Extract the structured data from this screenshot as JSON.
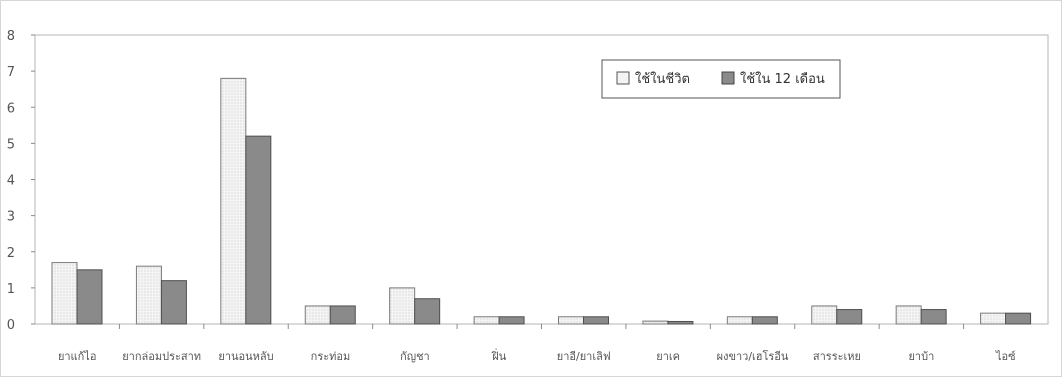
{
  "chart_data": {
    "type": "bar",
    "categories": [
      "ยาแก้ไอ",
      "ยากล่อมประสาท",
      "ยานอนหลับ",
      "กระท่อม",
      "กัญชา",
      "ฝิ่น",
      "ยาอี/ยาเลิฟ",
      "ยาเค",
      "ผงขาว/เฮโรอีน",
      "สารระเหย",
      "ยาบ้า",
      "ไอซ์"
    ],
    "series": [
      {
        "name": "ใช้ในชีวิต",
        "color": "#f4f4f4",
        "values": [
          1.7,
          1.6,
          6.8,
          0.5,
          1.0,
          0.2,
          0.2,
          0.08,
          0.2,
          0.5,
          0.5,
          0.3
        ]
      },
      {
        "name": "ใช้ใน 12 เดือน",
        "color": "#8a8a8a",
        "values": [
          1.5,
          1.2,
          5.2,
          0.5,
          0.7,
          0.2,
          0.2,
          0.07,
          0.2,
          0.4,
          0.4,
          0.3
        ]
      }
    ],
    "ylim": [
      0,
      8
    ],
    "yticks": [
      0,
      1,
      2,
      3,
      4,
      5,
      6,
      7,
      8
    ],
    "grid": false,
    "legend": "top-right"
  }
}
